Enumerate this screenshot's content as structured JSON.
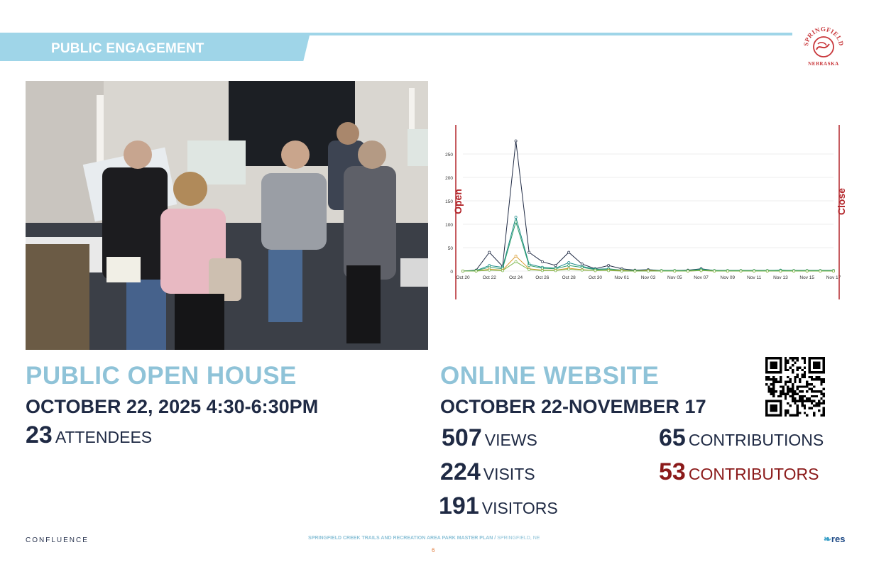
{
  "header": {
    "section_title": "PUBLIC ENGAGEMENT"
  },
  "logo": {
    "name": "SPRINGFIELD",
    "state": "NEBRASKA",
    "color": "#c8363a"
  },
  "open_house": {
    "title": "PUBLIC OPEN HOUSE",
    "date": "OCTOBER 22, 2025 4:30-6:30PM",
    "attendees_value": "23",
    "attendees_label": "ATTENDEES"
  },
  "online": {
    "title": "ONLINE WEBSITE",
    "dates": "OCTOBER 22-NOVEMBER 17",
    "stats": [
      {
        "value": "507",
        "label": "VIEWS"
      },
      {
        "value": "224",
        "label": "VISITS"
      },
      {
        "value": "191",
        "label": "VISITORS"
      },
      {
        "value": "65",
        "label": "CONTRIBUTIONS"
      },
      {
        "value": "53",
        "label": "CONTRIBUTORS"
      }
    ]
  },
  "chart_data": {
    "type": "line",
    "x": [
      "Oct 20",
      "Oct 21",
      "Oct 22",
      "Oct 23",
      "Oct 24",
      "Oct 25",
      "Oct 26",
      "Oct 27",
      "Oct 28",
      "Oct 29",
      "Oct 30",
      "Oct 31",
      "Nov 01",
      "Nov 02",
      "Nov 03",
      "Nov 04",
      "Nov 05",
      "Nov 06",
      "Nov 07",
      "Nov 08",
      "Nov 09",
      "Nov 10",
      "Nov 11",
      "Nov 12",
      "Nov 13",
      "Nov 14",
      "Nov 15",
      "Nov 16",
      "Nov 17"
    ],
    "tick_labels": [
      "Oct 20",
      "Oct 22",
      "Oct 24",
      "Oct 26",
      "Oct 28",
      "Oct 30",
      "Nov 01",
      "Nov 03",
      "Nov 05",
      "Nov 07",
      "Nov 09",
      "Nov 11",
      "Nov 13",
      "Nov 15",
      "Nov 17"
    ],
    "ylim": [
      0,
      300
    ],
    "yticks": [
      0,
      50,
      100,
      150,
      200,
      250
    ],
    "grid": true,
    "series": [
      {
        "color": "#1f2a44",
        "values": [
          0,
          2,
          40,
          10,
          278,
          40,
          20,
          12,
          40,
          15,
          5,
          12,
          5,
          2,
          3,
          1,
          1,
          2,
          5,
          1,
          1,
          1,
          1,
          1,
          1,
          1,
          1,
          1,
          1
        ]
      },
      {
        "color": "#1a8a86",
        "values": [
          0,
          1,
          12,
          8,
          115,
          15,
          8,
          6,
          18,
          10,
          4,
          5,
          2,
          1,
          2,
          1,
          1,
          1,
          4,
          1,
          1,
          1,
          1,
          1,
          2,
          1,
          1,
          1,
          1
        ]
      },
      {
        "color": "#2e9e6a",
        "values": [
          0,
          1,
          8,
          5,
          105,
          12,
          6,
          5,
          12,
          8,
          3,
          4,
          2,
          1,
          1,
          1,
          1,
          1,
          3,
          1,
          1,
          1,
          1,
          1,
          1,
          1,
          1,
          1,
          1
        ]
      },
      {
        "color": "#d99a2b",
        "values": [
          0,
          0,
          4,
          2,
          32,
          5,
          2,
          2,
          6,
          3,
          1,
          2,
          1,
          0,
          1,
          0,
          0,
          0,
          1,
          0,
          0,
          0,
          0,
          0,
          0,
          0,
          0,
          0,
          0
        ]
      },
      {
        "color": "#7ab648",
        "values": [
          0,
          0,
          2,
          1,
          20,
          3,
          1,
          1,
          4,
          2,
          1,
          1,
          0,
          0,
          0,
          0,
          0,
          0,
          1,
          0,
          0,
          0,
          0,
          0,
          0,
          0,
          0,
          0,
          0
        ]
      }
    ],
    "markers": [
      {
        "label": "Open",
        "at": "Oct 20",
        "color": "#b3262b"
      },
      {
        "label": "Close",
        "at": "Nov 17",
        "color": "#b3262b"
      }
    ]
  },
  "footer": {
    "left": "CONFLUENCE",
    "center_title": "SPRINGFIELD CREEK TRAILS AND RECREATION AREA PARK MASTER PLAN /",
    "center_location": " SPRINGFIELD, NE",
    "page_number": "6",
    "right": "res"
  }
}
